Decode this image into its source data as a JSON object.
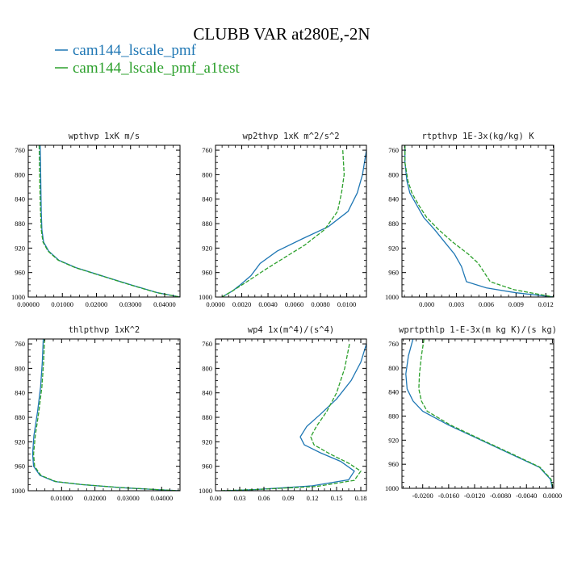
{
  "title": "CLUBB VAR at280E,-2N",
  "legend": [
    {
      "label": "cam144_lscale_pmf",
      "color": "#1f77b4",
      "dash": "solid"
    },
    {
      "label": "cam144_lscale_pmf_a1test",
      "color": "#2ca02c",
      "dash": "dashed"
    }
  ],
  "chart_data": [
    {
      "type": "line",
      "title": "wpthvp  1xK m/s",
      "xlim": [
        0,
        0.0445
      ],
      "ylim": [
        1000,
        752
      ],
      "xticks": [
        0.0,
        0.01,
        0.02,
        0.03,
        0.04
      ],
      "xtick_labels": [
        "0.00000",
        "0.01000",
        "0.02000",
        "0.03000",
        "0.04000"
      ],
      "yticks": [
        760,
        800,
        840,
        880,
        920,
        960,
        1000
      ],
      "series": [
        {
          "name": "cam144_lscale_pmf",
          "points": [
            [
              0.0035,
              752
            ],
            [
              0.0036,
              780
            ],
            [
              0.0037,
              820
            ],
            [
              0.0038,
              860
            ],
            [
              0.004,
              890
            ],
            [
              0.0045,
              910
            ],
            [
              0.006,
              925
            ],
            [
              0.009,
              940
            ],
            [
              0.014,
              952
            ],
            [
              0.022,
              966
            ],
            [
              0.03,
              980
            ],
            [
              0.038,
              993
            ],
            [
              0.0445,
              1000
            ]
          ]
        },
        {
          "name": "cam144_lscale_pmf_a1test",
          "points": [
            [
              0.0032,
              752
            ],
            [
              0.0033,
              780
            ],
            [
              0.0034,
              820
            ],
            [
              0.0036,
              860
            ],
            [
              0.0038,
              890
            ],
            [
              0.0043,
              910
            ],
            [
              0.0058,
              925
            ],
            [
              0.0088,
              940
            ],
            [
              0.0138,
              952
            ],
            [
              0.0218,
              966
            ],
            [
              0.0298,
              980
            ],
            [
              0.0378,
              993
            ],
            [
              0.0445,
              1000
            ]
          ]
        }
      ]
    },
    {
      "type": "line",
      "title": "wp2thvp  1xK m^2/s^2",
      "xlim": [
        0,
        0.0115
      ],
      "ylim": [
        1000,
        752
      ],
      "xticks": [
        0.0,
        0.002,
        0.004,
        0.006,
        0.008,
        0.01
      ],
      "xtick_labels": [
        "0.0000",
        "0.0020",
        "0.0040",
        "0.0060",
        "0.0080",
        "0.0100"
      ],
      "yticks": [
        760,
        800,
        840,
        880,
        920,
        960,
        1000
      ],
      "series": [
        {
          "name": "cam144_lscale_pmf",
          "points": [
            [
              0.0115,
              760
            ],
            [
              0.0112,
              800
            ],
            [
              0.0108,
              830
            ],
            [
              0.0101,
              860
            ],
            [
              0.0086,
              885
            ],
            [
              0.0066,
              905
            ],
            [
              0.0047,
              925
            ],
            [
              0.0034,
              945
            ],
            [
              0.0027,
              965
            ],
            [
              0.0019,
              980
            ],
            [
              0.0013,
              990
            ],
            [
              0.0009,
              995
            ],
            [
              0.0005,
              1000
            ]
          ]
        },
        {
          "name": "cam144_lscale_pmf_a1test",
          "points": [
            [
              0.0097,
              760
            ],
            [
              0.0098,
              800
            ],
            [
              0.0096,
              830
            ],
            [
              0.0093,
              860
            ],
            [
              0.0083,
              890
            ],
            [
              0.0068,
              915
            ],
            [
              0.0053,
              935
            ],
            [
              0.0038,
              955
            ],
            [
              0.0024,
              975
            ],
            [
              0.0013,
              990
            ],
            [
              0.0005,
              1000
            ]
          ]
        }
      ]
    },
    {
      "type": "line",
      "title": "rtpthvp  1E-3x(kg/kg) K",
      "xlim": [
        -0.0025,
        0.0128
      ],
      "ylim": [
        1000,
        752
      ],
      "xticks": [
        0.0,
        0.003,
        0.006,
        0.009,
        0.012
      ],
      "xtick_labels": [
        "0.000",
        "0.003",
        "0.006",
        "0.009",
        "0.012"
      ],
      "yticks": [
        760,
        800,
        840,
        880,
        920,
        960,
        1000
      ],
      "series": [
        {
          "name": "cam144_lscale_pmf",
          "points": [
            [
              -0.0022,
              752
            ],
            [
              -0.0022,
              780
            ],
            [
              -0.002,
              810
            ],
            [
              -0.0017,
              830
            ],
            [
              -0.001,
              850
            ],
            [
              -0.0003,
              870
            ],
            [
              0.0008,
              890
            ],
            [
              0.0018,
              910
            ],
            [
              0.0028,
              930
            ],
            [
              0.0035,
              950
            ],
            [
              0.004,
              975
            ],
            [
              0.006,
              985
            ],
            [
              0.009,
              993
            ],
            [
              0.0128,
              1000
            ]
          ]
        },
        {
          "name": "cam144_lscale_pmf_a1test",
          "points": [
            [
              -0.0022,
              752
            ],
            [
              -0.0022,
              780
            ],
            [
              -0.0019,
              810
            ],
            [
              -0.0015,
              830
            ],
            [
              -0.0008,
              850
            ],
            [
              0.0,
              870
            ],
            [
              0.0012,
              890
            ],
            [
              0.0026,
              910
            ],
            [
              0.0042,
              930
            ],
            [
              0.0052,
              945
            ],
            [
              0.0058,
              960
            ],
            [
              0.0064,
              975
            ],
            [
              0.0088,
              988
            ],
            [
              0.0128,
              1000
            ]
          ]
        }
      ]
    },
    {
      "type": "line",
      "title": "thlpthvp  1xK^2",
      "xlim": [
        0,
        0.0455
      ],
      "ylim": [
        1000,
        752
      ],
      "xticks": [
        0.01,
        0.02,
        0.03,
        0.04
      ],
      "xtick_labels": [
        "0.01000",
        "0.02000",
        "0.03000",
        "0.04000"
      ],
      "yticks": [
        760,
        800,
        840,
        880,
        920,
        960,
        1000
      ],
      "series": [
        {
          "name": "cam144_lscale_pmf",
          "points": [
            [
              0.0045,
              752
            ],
            [
              0.0042,
              790
            ],
            [
              0.0037,
              830
            ],
            [
              0.0028,
              870
            ],
            [
              0.0017,
              910
            ],
            [
              0.0013,
              940
            ],
            [
              0.0016,
              960
            ],
            [
              0.0035,
              975
            ],
            [
              0.008,
              985
            ],
            [
              0.016,
              990
            ],
            [
              0.028,
              995
            ],
            [
              0.038,
              998
            ],
            [
              0.0455,
              1000
            ]
          ]
        },
        {
          "name": "cam144_lscale_pmf_a1test",
          "points": [
            [
              0.0049,
              752
            ],
            [
              0.0046,
              790
            ],
            [
              0.0041,
              830
            ],
            [
              0.0032,
              870
            ],
            [
              0.0021,
              910
            ],
            [
              0.0016,
              940
            ],
            [
              0.0019,
              960
            ],
            [
              0.0038,
              975
            ],
            [
              0.0083,
              985
            ],
            [
              0.0163,
              990
            ],
            [
              0.0283,
              995
            ],
            [
              0.0383,
              998
            ],
            [
              0.0455,
              1000
            ]
          ]
        }
      ]
    },
    {
      "type": "line",
      "title": "wp4  1x(m^4)/(s^4)",
      "xlim": [
        0,
        0.187
      ],
      "ylim": [
        1000,
        752
      ],
      "xticks": [
        0.0,
        0.03,
        0.06,
        0.09,
        0.12,
        0.15,
        0.18
      ],
      "xtick_labels": [
        "0.00",
        "0.03",
        "0.06",
        "0.09",
        "0.12",
        "0.15",
        "0.18"
      ],
      "yticks": [
        760,
        800,
        840,
        880,
        920,
        960,
        1000
      ],
      "series": [
        {
          "name": "cam144_lscale_pmf",
          "points": [
            [
              0.187,
              760
            ],
            [
              0.18,
              790
            ],
            [
              0.168,
              820
            ],
            [
              0.15,
              850
            ],
            [
              0.13,
              875
            ],
            [
              0.113,
              895
            ],
            [
              0.105,
              912
            ],
            [
              0.11,
              925
            ],
            [
              0.13,
              938
            ],
            [
              0.155,
              952
            ],
            [
              0.172,
              968
            ],
            [
              0.165,
              982
            ],
            [
              0.12,
              992
            ],
            [
              0.05,
              998
            ],
            [
              0.01,
              1000
            ]
          ]
        },
        {
          "name": "cam144_lscale_pmf_a1test",
          "points": [
            [
              0.166,
              760
            ],
            [
              0.16,
              800
            ],
            [
              0.15,
              840
            ],
            [
              0.138,
              870
            ],
            [
              0.125,
              895
            ],
            [
              0.118,
              912
            ],
            [
              0.122,
              925
            ],
            [
              0.142,
              940
            ],
            [
              0.165,
              955
            ],
            [
              0.18,
              968
            ],
            [
              0.172,
              983
            ],
            [
              0.125,
              993
            ],
            [
              0.05,
              998
            ],
            [
              0.005,
              1000
            ]
          ]
        }
      ]
    },
    {
      "type": "line",
      "title": "wprtpthlp  1-E-3x(m kg K)/(s kg)",
      "xlim": [
        -0.0232,
        0.0002
      ],
      "ylim": [
        1000,
        752
      ],
      "xticks": [
        -0.02,
        -0.016,
        -0.012,
        -0.008,
        -0.004,
        0.0
      ],
      "xtick_labels": [
        "-0.0200",
        "-0.0160",
        "-0.0120",
        "-0.0080",
        "-0.0040",
        "0.0000"
      ],
      "yticks": [
        760,
        800,
        840,
        880,
        920,
        960,
        1000
      ],
      "series": [
        {
          "name": "cam144_lscale_pmf",
          "points": [
            [
              -0.0215,
              752
            ],
            [
              -0.0222,
              780
            ],
            [
              -0.0226,
              810
            ],
            [
              -0.0224,
              835
            ],
            [
              -0.0215,
              855
            ],
            [
              -0.02,
              872
            ],
            [
              -0.016,
              895
            ],
            [
              -0.011,
              920
            ],
            [
              -0.006,
              945
            ],
            [
              -0.002,
              965
            ],
            [
              -0.0003,
              985
            ],
            [
              0.0,
              1000
            ]
          ]
        },
        {
          "name": "cam144_lscale_pmf_a1test",
          "points": [
            [
              -0.0198,
              752
            ],
            [
              -0.0202,
              780
            ],
            [
              -0.0205,
              810
            ],
            [
              -0.0206,
              835
            ],
            [
              -0.0202,
              855
            ],
            [
              -0.0193,
              872
            ],
            [
              -0.0157,
              895
            ],
            [
              -0.0108,
              920
            ],
            [
              -0.0058,
              945
            ],
            [
              -0.0019,
              965
            ],
            [
              -0.0002,
              985
            ],
            [
              0.0001,
              1000
            ]
          ]
        }
      ]
    }
  ]
}
